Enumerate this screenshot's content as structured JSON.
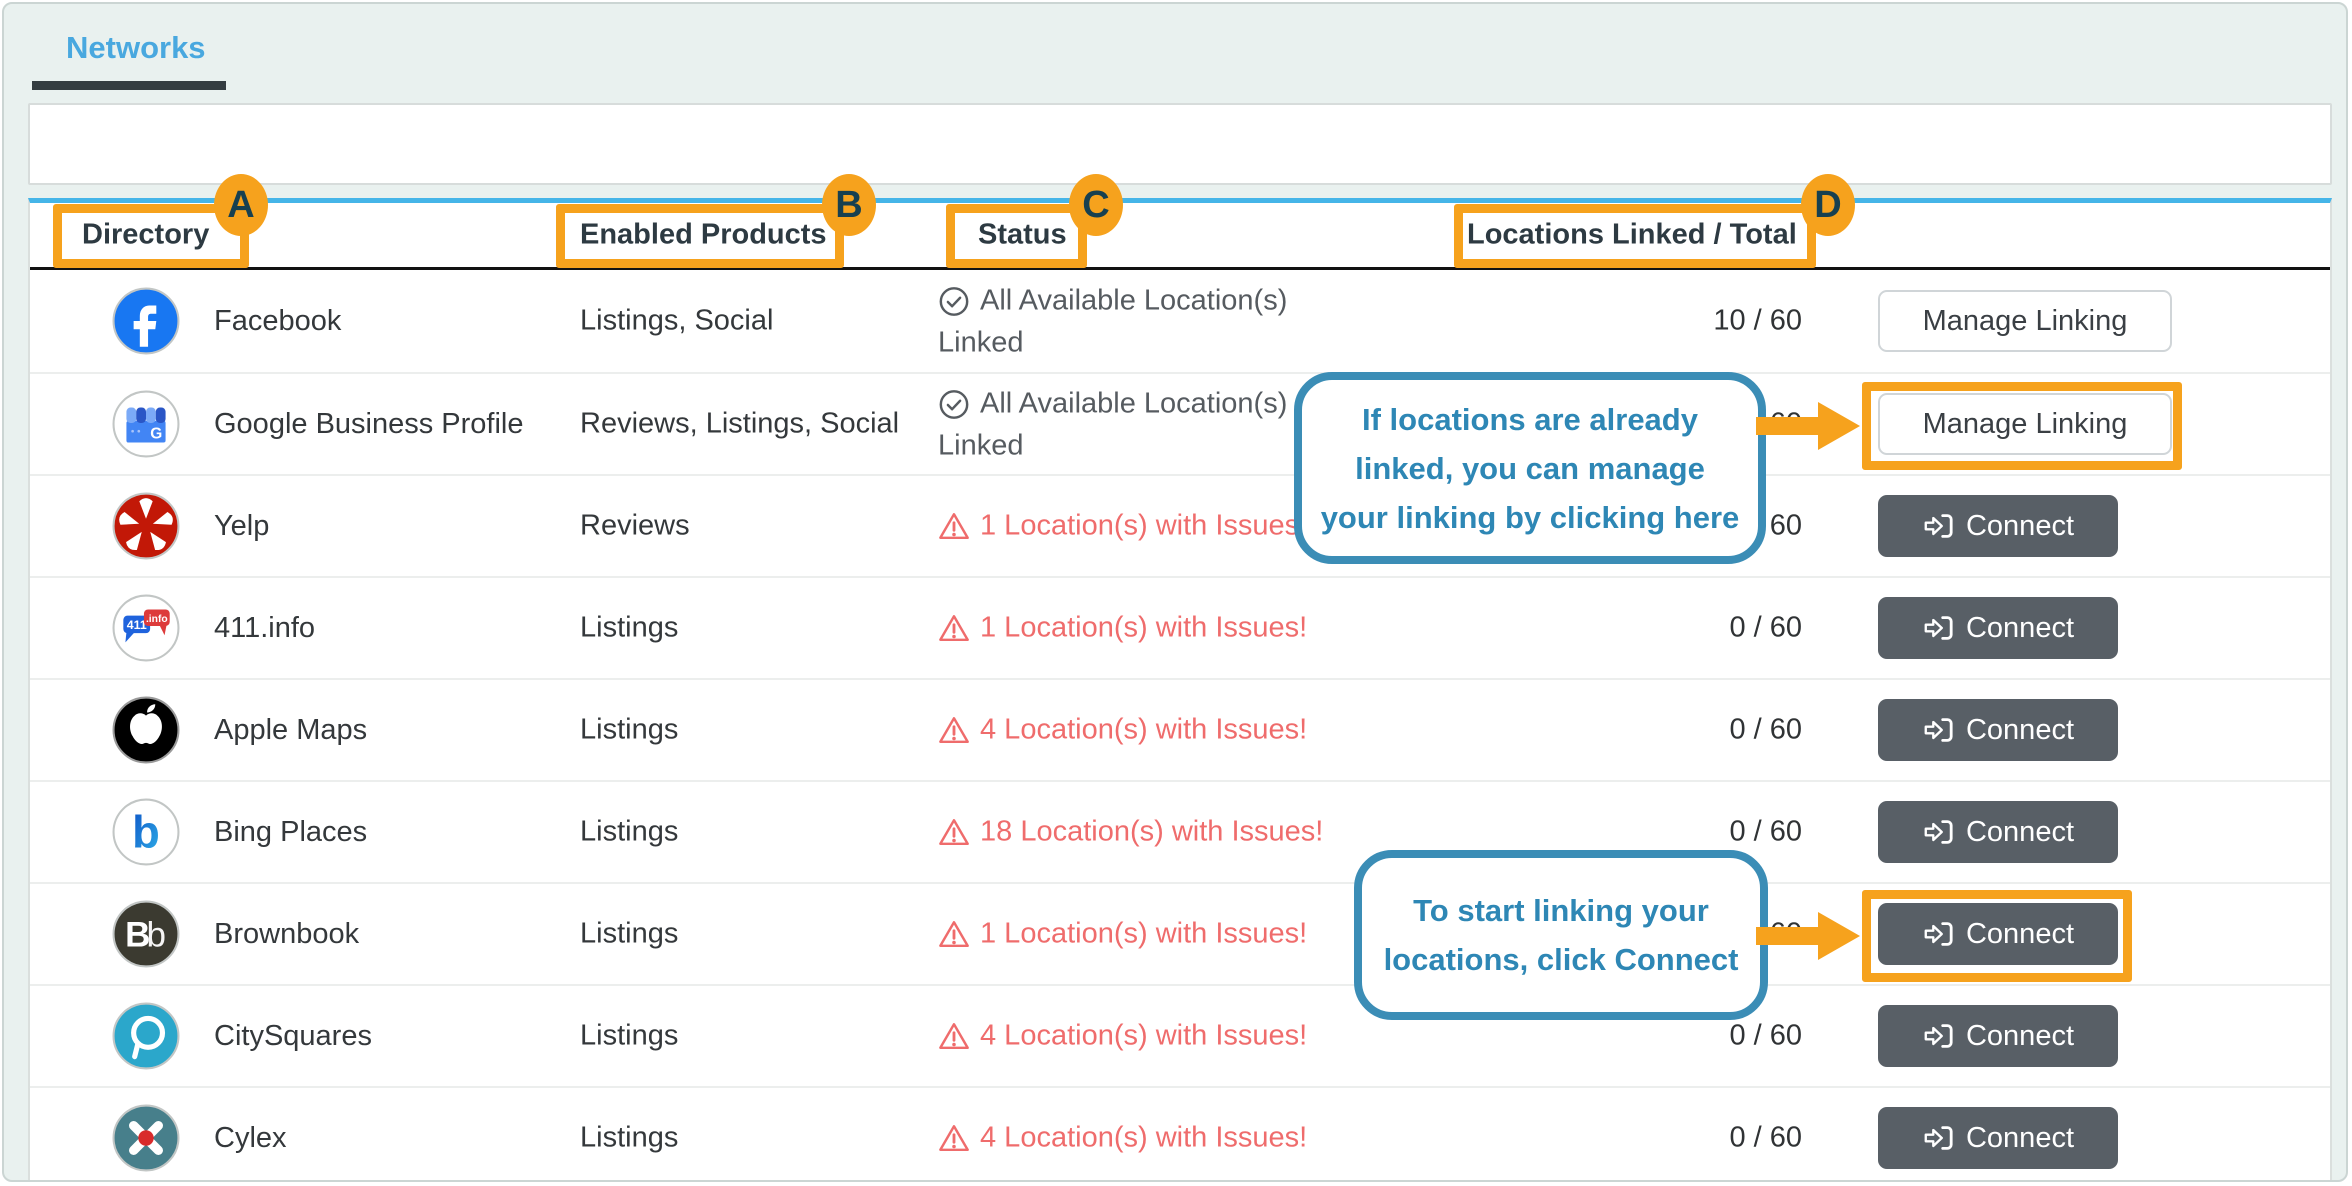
{
  "tabs": {
    "networks_label": "Networks"
  },
  "table": {
    "headers": [
      {
        "label": "Directory",
        "badge": "A"
      },
      {
        "label": "Enabled Products",
        "badge": "B"
      },
      {
        "label": "Status",
        "badge": "C"
      },
      {
        "label": "Locations Linked / Total",
        "badge": "D"
      }
    ],
    "rows": [
      {
        "icon": "facebook",
        "name": "Facebook",
        "products": "Listings, Social",
        "status": {
          "type": "ok",
          "lines": [
            "All Available Location(s)",
            "Linked"
          ]
        },
        "count": "10 / 60",
        "action": {
          "type": "manage",
          "label": "Manage Linking"
        }
      },
      {
        "icon": "google-business",
        "name": "Google Business Profile",
        "products": "Reviews, Listings, Social",
        "status": {
          "type": "ok",
          "lines": [
            "All Available Location(s)",
            "Linked"
          ]
        },
        "count": "10 / 60",
        "action": {
          "type": "manage",
          "label": "Manage Linking"
        }
      },
      {
        "icon": "yelp",
        "name": "Yelp",
        "products": "Reviews",
        "status": {
          "type": "issue",
          "lines": [
            "1 Location(s) with Issues!"
          ]
        },
        "count": "0 / 60",
        "action": {
          "type": "connect",
          "label": "Connect"
        }
      },
      {
        "icon": "411info",
        "name": "411.info",
        "products": "Listings",
        "status": {
          "type": "issue",
          "lines": [
            "1 Location(s) with Issues!"
          ]
        },
        "count": "0 / 60",
        "action": {
          "type": "connect",
          "label": "Connect"
        }
      },
      {
        "icon": "apple-maps",
        "name": "Apple Maps",
        "products": "Listings",
        "status": {
          "type": "issue",
          "lines": [
            "4 Location(s) with Issues!"
          ]
        },
        "count": "0 / 60",
        "action": {
          "type": "connect",
          "label": "Connect"
        }
      },
      {
        "icon": "bing-places",
        "name": "Bing Places",
        "products": "Listings",
        "status": {
          "type": "issue",
          "lines": [
            "18 Location(s) with Issues!"
          ]
        },
        "count": "0 / 60",
        "action": {
          "type": "connect",
          "label": "Connect"
        }
      },
      {
        "icon": "brownbook",
        "name": "Brownbook",
        "products": "Listings",
        "status": {
          "type": "issue",
          "lines": [
            "1 Location(s) with Issues!"
          ]
        },
        "count": "0 / 60",
        "action": {
          "type": "connect",
          "label": "Connect"
        }
      },
      {
        "icon": "citysquares",
        "name": "CitySquares",
        "products": "Listings",
        "status": {
          "type": "issue",
          "lines": [
            "4 Location(s) with Issues!"
          ]
        },
        "count": "0 / 60",
        "action": {
          "type": "connect",
          "label": "Connect"
        }
      },
      {
        "icon": "cylex",
        "name": "Cylex",
        "products": "Listings",
        "status": {
          "type": "issue",
          "lines": [
            "4 Location(s) with Issues!"
          ]
        },
        "count": "0 / 60",
        "action": {
          "type": "connect",
          "label": "Connect"
        }
      }
    ]
  },
  "annotations": {
    "badges": [
      "A",
      "B",
      "C",
      "D"
    ],
    "callout1": {
      "text": "If locations are already linked, you can manage your linking by clicking here"
    },
    "callout2": {
      "text": "To start linking your locations, click ",
      "bold": "Connect"
    }
  },
  "colors": {
    "annotation_orange": "#f6a21d",
    "callout_blue": "#3b8db6",
    "tab_blue": "#49a8df",
    "table_topline_blue": "#45b5e8",
    "issue_red": "#ef6c6c",
    "connect_button_bg": "#585f66"
  }
}
